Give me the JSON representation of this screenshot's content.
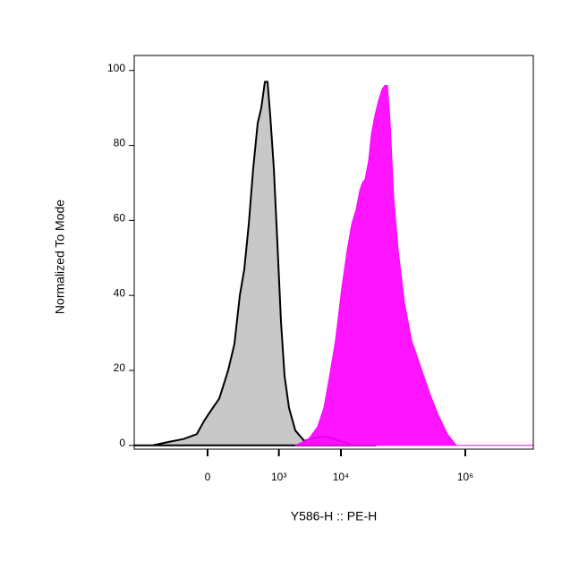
{
  "chart_data": {
    "type": "area",
    "xlabel": "Y586-H :: PE-H",
    "ylabel": "Normalized To Mode",
    "xscale": "biexponential",
    "linear_width": 143.5,
    "xlim": [
      -1080,
      12400000
    ],
    "xticks": [
      0,
      {
        "value": 1000,
        "label": "10³"
      },
      {
        "value": 10000,
        "label": "10⁴"
      },
      {
        "value": 1000000,
        "label": "10⁶"
      }
    ],
    "ylim": [
      -1,
      104
    ],
    "yticks": [
      0,
      20,
      40,
      60,
      80,
      100
    ],
    "series": [
      {
        "color": "#c8c8c8",
        "stroke": "#000000",
        "x": [
          -1080,
          -551,
          -271,
          -146,
          -59,
          -19,
          14,
          64,
          120,
          167,
          215,
          261,
          314,
          376,
          448,
          514,
          590,
          653,
          723,
          827,
          946,
          1082,
          1237,
          1460,
          1843,
          2570,
          3580,
          5880,
          9670,
          15900,
          36300
        ],
        "values": [
          0,
          0,
          1,
          1.7,
          3,
          6.5,
          9,
          12.5,
          20,
          27,
          40,
          47,
          59,
          74,
          86,
          90,
          97,
          97,
          88,
          74,
          54,
          33,
          18.5,
          10,
          4,
          1.2,
          2,
          2.4,
          1.2,
          0,
          0
        ]
      },
      {
        "color": "#ff00ff",
        "stroke": "#ff00ff",
        "x": [
          1843,
          3030,
          4220,
          5320,
          6500,
          8190,
          10330,
          12600,
          14900,
          17600,
          20100,
          22100,
          24500,
          27900,
          30900,
          35200,
          40300,
          45900,
          50700,
          56000,
          61900,
          70600,
          83400,
          105200,
          137000,
          191000,
          266000,
          370000,
          516000,
          718000,
          1000000,
          12400000
        ],
        "values": [
          0,
          1.7,
          5,
          10,
          18,
          28,
          42,
          52,
          59,
          63,
          68,
          70,
          71,
          76,
          83,
          88,
          92,
          95,
          96,
          96,
          86,
          66,
          52,
          38,
          28,
          21,
          14,
          8,
          3,
          0,
          0,
          0
        ]
      }
    ]
  }
}
